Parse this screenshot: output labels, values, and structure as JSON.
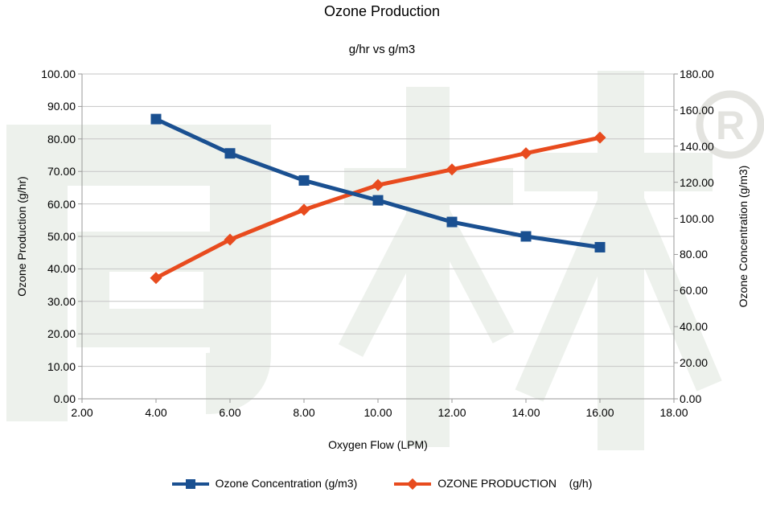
{
  "watermark": {
    "text": "同林",
    "registered_symbol": "®",
    "color": "#edf1ec",
    "registered_color": "#e3e3df"
  },
  "palette": {
    "gridline": "#c6c6c6",
    "axis_line": "#9a9a9a",
    "text": "#000000"
  },
  "chart_data": {
    "type": "line",
    "title": "Ozone Production",
    "subtitle": "g/hr vs g/m3",
    "xlabel": "Oxygen Flow (LPM)",
    "ylabel_left": "Ozone Production (g/hr)",
    "ylabel_right": "Ozone Concentration (g/m3)",
    "grid": true,
    "legend_position": "bottom",
    "xlim": [
      2,
      18
    ],
    "ylim_left": [
      0,
      100
    ],
    "ylim_right": [
      0,
      180
    ],
    "x_ticks": [
      "2.00",
      "4.00",
      "6.00",
      "8.00",
      "10.00",
      "12.00",
      "14.00",
      "16.00",
      "18.00"
    ],
    "left_ticks": [
      "0.00",
      "10.00",
      "20.00",
      "30.00",
      "40.00",
      "50.00",
      "60.00",
      "70.00",
      "80.00",
      "90.00",
      "100.00"
    ],
    "right_ticks": [
      "0.00",
      "20.00",
      "40.00",
      "60.00",
      "80.00",
      "100.00",
      "120.00",
      "140.00",
      "160.00",
      "180.00"
    ],
    "x": [
      4,
      6,
      8,
      10,
      12,
      14,
      16
    ],
    "series": [
      {
        "name": "Ozone Concentration (g/m3)",
        "axis": "right",
        "marker": "square-icon",
        "color": "#1a5091",
        "values": [
          155,
          136,
          121,
          110,
          98,
          90,
          84
        ]
      },
      {
        "name": "OZONE PRODUCTION    (g/h)",
        "axis": "left",
        "marker": "diamond-icon",
        "color": "#e84b1e",
        "values": [
          37.2,
          49.0,
          58.2,
          65.8,
          70.6,
          75.6,
          80.4
        ]
      }
    ]
  }
}
